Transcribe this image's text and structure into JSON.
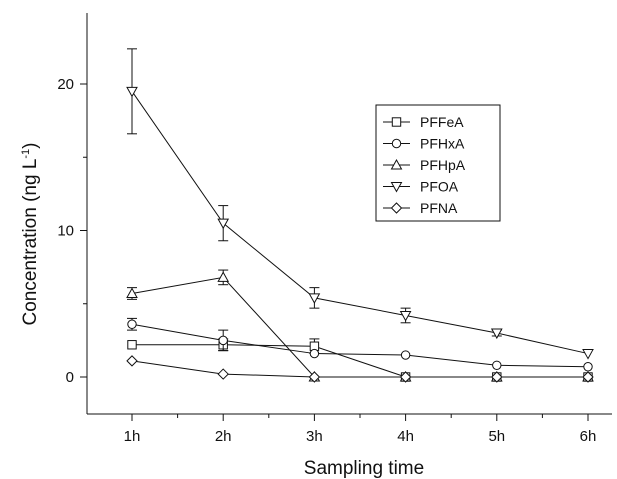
{
  "chart_data": {
    "type": "line",
    "xlabel": "Sampling time",
    "ylabel": "Concentration (ng L",
    "ylabel_sup": "-1",
    "ylabel_close": ")",
    "categories": [
      "1h",
      "2h",
      "3h",
      "4h",
      "5h",
      "6h"
    ],
    "yticks": [
      0,
      10,
      20
    ],
    "ylim": [
      -2.5,
      25.5
    ],
    "legend_position": "center-right",
    "series": [
      {
        "name": "PFFeA",
        "marker": "square",
        "values": [
          2.2,
          2.2,
          2.1,
          0.0,
          0.0,
          0.0
        ],
        "errors": [
          0.0,
          0.4,
          0.5,
          0.0,
          0.0,
          0.0
        ]
      },
      {
        "name": "PFHxA",
        "marker": "circle",
        "values": [
          3.6,
          2.5,
          1.6,
          1.5,
          0.8,
          0.7
        ],
        "errors": [
          0.4,
          0.7,
          0.0,
          0.0,
          0.0,
          0.0
        ]
      },
      {
        "name": "PFHpA",
        "marker": "triangle-up",
        "values": [
          5.7,
          6.8,
          0.0,
          0.0,
          0.0,
          0.0
        ],
        "errors": [
          0.4,
          0.5,
          0.0,
          0.0,
          0.0,
          0.0
        ]
      },
      {
        "name": "PFOA",
        "marker": "triangle-down",
        "values": [
          19.5,
          10.5,
          5.4,
          4.2,
          3.0,
          1.6
        ],
        "errors": [
          2.9,
          1.2,
          0.7,
          0.5,
          0.2,
          0.0
        ]
      },
      {
        "name": "PFNA",
        "marker": "diamond",
        "values": [
          1.1,
          0.2,
          0.0,
          0.0,
          0.0,
          0.0
        ],
        "errors": [
          0.0,
          0.0,
          0.0,
          0.0,
          0.0,
          0.0
        ]
      }
    ]
  }
}
